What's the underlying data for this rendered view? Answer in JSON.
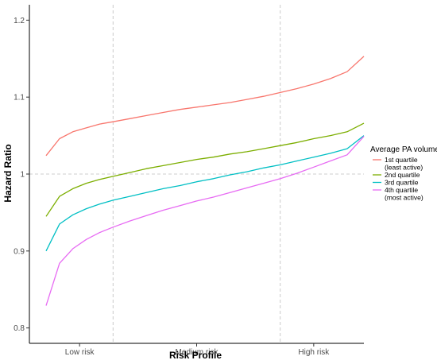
{
  "chart_data": {
    "type": "line",
    "title": "",
    "xlabel": "Risk Profile",
    "ylabel": "Hazard Ratio",
    "ylim": [
      0.78,
      1.22
    ],
    "yticks": [
      0.8,
      0.9,
      1.0,
      1.1,
      1.2
    ],
    "ytick_labels": [
      "0.8",
      "0.9",
      "1",
      "1.1",
      "1.2"
    ],
    "xlim": [
      0,
      100
    ],
    "xticks": [
      {
        "x": 15,
        "label": "Low risk"
      },
      {
        "x": 50,
        "label": "Medium risk"
      },
      {
        "x": 85,
        "label": "High risk"
      }
    ],
    "vlines": [
      25,
      75
    ],
    "hline": 1.0,
    "grid": false,
    "legend": {
      "title": "Average PA volume",
      "placement": "right",
      "entries": [
        {
          "line1": "1st quartile",
          "line2": "(least active)"
        },
        {
          "line1": "2nd quartile",
          "line2": ""
        },
        {
          "line1": "3rd quartile",
          "line2": ""
        },
        {
          "line1": "4th quartile",
          "line2": "(most active)"
        }
      ]
    },
    "x": [
      5,
      9,
      13,
      17,
      21,
      25,
      30,
      35,
      40,
      45,
      50,
      55,
      60,
      65,
      70,
      75,
      80,
      85,
      90,
      95,
      100
    ],
    "series": [
      {
        "name": "1st quartile (least active)",
        "color": "#F8766D",
        "values": [
          1.024,
          1.046,
          1.055,
          1.06,
          1.065,
          1.068,
          1.072,
          1.076,
          1.08,
          1.084,
          1.087,
          1.09,
          1.093,
          1.097,
          1.101,
          1.106,
          1.111,
          1.117,
          1.124,
          1.133,
          1.153
        ]
      },
      {
        "name": "2nd quartile",
        "color": "#7CAE00",
        "values": [
          0.945,
          0.971,
          0.981,
          0.988,
          0.993,
          0.997,
          1.002,
          1.007,
          1.011,
          1.015,
          1.019,
          1.022,
          1.026,
          1.029,
          1.033,
          1.037,
          1.041,
          1.046,
          1.05,
          1.055,
          1.066
        ]
      },
      {
        "name": "3rd quartile",
        "color": "#00BFC4",
        "values": [
          0.9,
          0.935,
          0.947,
          0.955,
          0.961,
          0.966,
          0.971,
          0.976,
          0.981,
          0.985,
          0.99,
          0.994,
          0.999,
          1.003,
          1.008,
          1.012,
          1.017,
          1.022,
          1.027,
          1.033,
          1.05
        ]
      },
      {
        "name": "4th quartile (most active)",
        "color": "#E76BF3",
        "values": [
          0.829,
          0.884,
          0.903,
          0.915,
          0.924,
          0.931,
          0.939,
          0.946,
          0.953,
          0.959,
          0.965,
          0.97,
          0.976,
          0.982,
          0.988,
          0.994,
          1.001,
          1.009,
          1.017,
          1.025,
          1.049
        ]
      }
    ]
  }
}
